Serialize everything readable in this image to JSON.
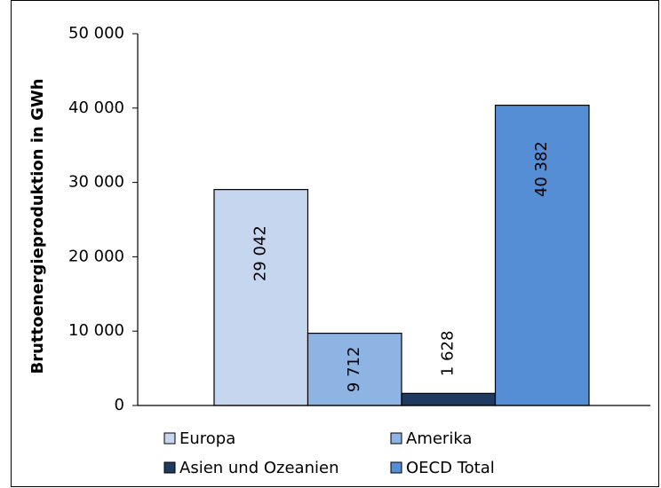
{
  "chart_data": {
    "type": "bar",
    "y_label": "Bruttoenergieproduktion in GWh",
    "categories": [
      null
    ],
    "series": [
      {
        "name": "Europa",
        "color": "#c6d6ee",
        "values": [
          29042
        ],
        "value_labels": [
          "29 042"
        ]
      },
      {
        "name": "Amerika",
        "color": "#8eb4e3",
        "values": [
          9712
        ],
        "value_labels": [
          "9 712"
        ]
      },
      {
        "name": "Asien und Ozeanien",
        "color": "#1f3a5f",
        "values": [
          1628
        ],
        "value_labels": [
          "1 628"
        ]
      },
      {
        "name": "OECD Total",
        "color": "#558ed5",
        "values": [
          40382
        ],
        "value_labels": [
          "40 382"
        ]
      }
    ],
    "ylim": [
      0,
      50000
    ],
    "yticks": [
      {
        "value": 0,
        "label": "0"
      },
      {
        "value": 10000,
        "label": "10 000"
      },
      {
        "value": 20000,
        "label": "20 000"
      },
      {
        "value": 30000,
        "label": "30 000"
      },
      {
        "value": 40000,
        "label": "40 000"
      },
      {
        "value": 50000,
        "label": "50 000"
      }
    ],
    "grid": false
  }
}
